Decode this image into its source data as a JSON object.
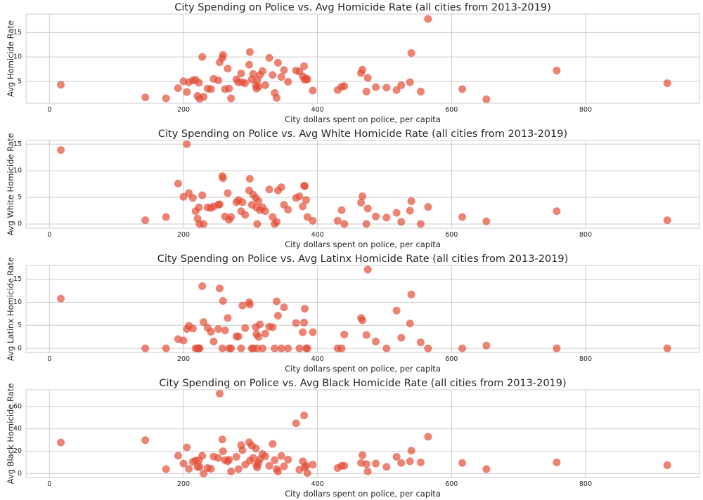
{
  "chart_data": [
    {
      "type": "scatter",
      "title": "City Spending on Police vs. Avg Homicide Rate (all cities from 2013-2019)",
      "xlabel": "City dollars spent on police, per capita",
      "ylabel": "Avg Homicide Rate",
      "xlim": [
        -35,
        970
      ],
      "ylim": [
        0.5,
        18.8
      ],
      "xticks": [
        0,
        200,
        400,
        600,
        800
      ],
      "yticks": [
        5,
        10,
        15
      ],
      "grid": true,
      "color": "#e24a33",
      "points": [
        [
          17,
          4.3
        ],
        [
          143,
          1.7
        ],
        [
          174,
          1.5
        ],
        [
          192,
          3.6
        ],
        [
          200,
          5
        ],
        [
          205,
          2.8
        ],
        [
          208,
          4.8
        ],
        [
          214,
          5.2
        ],
        [
          218,
          5.3
        ],
        [
          221,
          2
        ],
        [
          223,
          4.7
        ],
        [
          224,
          1.4
        ],
        [
          228,
          10
        ],
        [
          230,
          1.8
        ],
        [
          236,
          3.5
        ],
        [
          241,
          3.4
        ],
        [
          245,
          5.5
        ],
        [
          252,
          5.2
        ],
        [
          254,
          8.9
        ],
        [
          258,
          9.8
        ],
        [
          259,
          10.4
        ],
        [
          262,
          3.4
        ],
        [
          266,
          7.6
        ],
        [
          268,
          3.5
        ],
        [
          271,
          1.5
        ],
        [
          279,
          5.4
        ],
        [
          282,
          4.8
        ],
        [
          286,
          6.6
        ],
        [
          288,
          4.8
        ],
        [
          292,
          4.6
        ],
        [
          298,
          8.4
        ],
        [
          299,
          11
        ],
        [
          302,
          5.4
        ],
        [
          304,
          6.5
        ],
        [
          308,
          4.1
        ],
        [
          309,
          3.5
        ],
        [
          310,
          5.2
        ],
        [
          312,
          3.9
        ],
        [
          314,
          6.3
        ],
        [
          318,
          7.1
        ],
        [
          322,
          4.2
        ],
        [
          328,
          9.8
        ],
        [
          333,
          6.3
        ],
        [
          336,
          2.6
        ],
        [
          339,
          1.6
        ],
        [
          341,
          8.8
        ],
        [
          346,
          5.9
        ],
        [
          350,
          7.3
        ],
        [
          356,
          4.9
        ],
        [
          368,
          7.2
        ],
        [
          373,
          7.0
        ],
        [
          378,
          6.0
        ],
        [
          380,
          8.1
        ],
        [
          381,
          5.3
        ],
        [
          383,
          5.6
        ],
        [
          385,
          5.4
        ],
        [
          393,
          3.1
        ],
        [
          430,
          3.2
        ],
        [
          436,
          3.9
        ],
        [
          440,
          4
        ],
        [
          465,
          6.7
        ],
        [
          467,
          7.4
        ],
        [
          473,
          2.9
        ],
        [
          475,
          5.7
        ],
        [
          487,
          3.8
        ],
        [
          503,
          3.7
        ],
        [
          518,
          3.2
        ],
        [
          525,
          4.2
        ],
        [
          538,
          4.8
        ],
        [
          540,
          10.8
        ],
        [
          554,
          2.9
        ],
        [
          565,
          17.8
        ],
        [
          616,
          3.4
        ],
        [
          652,
          1.3
        ],
        [
          757,
          7.2
        ],
        [
          922,
          4.6
        ]
      ]
    },
    {
      "type": "scatter",
      "title": "City Spending on Police vs. Avg White Homicide Rate (all cities from 2013-2019)",
      "xlabel": "City dollars spent on police, per capita",
      "ylabel": "Avg White Homicide Rate",
      "xlim": [
        -35,
        970
      ],
      "ylim": [
        -0.8,
        15.7
      ],
      "xticks": [
        0,
        200,
        400,
        600,
        800
      ],
      "yticks": [
        0,
        5,
        10,
        15
      ],
      "grid": true,
      "color": "#e24a33",
      "points": [
        [
          17,
          13.9
        ],
        [
          143,
          0.7
        ],
        [
          174,
          1.3
        ],
        [
          192,
          7.6
        ],
        [
          200,
          5.1
        ],
        [
          205,
          15
        ],
        [
          208,
          5.8
        ],
        [
          214,
          4.9
        ],
        [
          218,
          2.4
        ],
        [
          221,
          1
        ],
        [
          223,
          3.1
        ],
        [
          224,
          0
        ],
        [
          228,
          5.4
        ],
        [
          230,
          0
        ],
        [
          236,
          3.1
        ],
        [
          241,
          3
        ],
        [
          245,
          3.3
        ],
        [
          252,
          3.6
        ],
        [
          254,
          3.7
        ],
        [
          258,
          9
        ],
        [
          259,
          8.6
        ],
        [
          262,
          1.4
        ],
        [
          266,
          5.8
        ],
        [
          268,
          0.8
        ],
        [
          271,
          1.3
        ],
        [
          279,
          4.1
        ],
        [
          282,
          4.5
        ],
        [
          286,
          2.4
        ],
        [
          288,
          4.1
        ],
        [
          292,
          1.7
        ],
        [
          298,
          6.3
        ],
        [
          299,
          8.5
        ],
        [
          302,
          3.6
        ],
        [
          304,
          5.5
        ],
        [
          308,
          4.9
        ],
        [
          309,
          3.1
        ],
        [
          310,
          0
        ],
        [
          312,
          4.3
        ],
        [
          314,
          2.6
        ],
        [
          318,
          3.1
        ],
        [
          322,
          2.4
        ],
        [
          328,
          6.5
        ],
        [
          333,
          1.3
        ],
        [
          336,
          0
        ],
        [
          339,
          0.4
        ],
        [
          341,
          6.3
        ],
        [
          346,
          6.9
        ],
        [
          350,
          3.6
        ],
        [
          356,
          2.7
        ],
        [
          368,
          4.9
        ],
        [
          373,
          5.2
        ],
        [
          378,
          3.3
        ],
        [
          380,
          7.2
        ],
        [
          381,
          7.1
        ],
        [
          383,
          4.5
        ],
        [
          385,
          1.3
        ],
        [
          393,
          0.6
        ],
        [
          430,
          0.6
        ],
        [
          436,
          2.6
        ],
        [
          440,
          0
        ],
        [
          465,
          4
        ],
        [
          467,
          5.2
        ],
        [
          473,
          0
        ],
        [
          475,
          2.9
        ],
        [
          487,
          1.4
        ],
        [
          503,
          1.2
        ],
        [
          518,
          2.1
        ],
        [
          525,
          0.4
        ],
        [
          538,
          2.5
        ],
        [
          540,
          4.3
        ],
        [
          554,
          0
        ],
        [
          565,
          3.2
        ],
        [
          616,
          1.3
        ],
        [
          652,
          0.5
        ],
        [
          757,
          2.4
        ],
        [
          922,
          0.7
        ]
      ]
    },
    {
      "type": "scatter",
      "title": "City Spending on Police vs. Avg Latinx Homicide Rate (all cities from 2013-2019)",
      "xlabel": "City dollars spent on police, per capita",
      "ylabel": "Avg Latinx Homicide Rate",
      "xlim": [
        -35,
        970
      ],
      "ylim": [
        -0.9,
        18.0
      ],
      "xticks": [
        0,
        200,
        400,
        600,
        800
      ],
      "yticks": [
        0,
        5,
        10,
        15
      ],
      "grid": true,
      "color": "#e24a33",
      "points": [
        [
          17,
          10.8
        ],
        [
          143,
          0
        ],
        [
          174,
          0
        ],
        [
          192,
          2
        ],
        [
          200,
          1.7
        ],
        [
          205,
          4.2
        ],
        [
          208,
          4.9
        ],
        [
          214,
          4.3
        ],
        [
          218,
          0
        ],
        [
          221,
          0
        ],
        [
          223,
          0
        ],
        [
          224,
          0
        ],
        [
          228,
          13.5
        ],
        [
          230,
          5.7
        ],
        [
          236,
          4.5
        ],
        [
          241,
          3.6
        ],
        [
          245,
          1.5
        ],
        [
          252,
          4.2
        ],
        [
          254,
          13
        ],
        [
          258,
          0
        ],
        [
          259,
          10.3
        ],
        [
          262,
          3.9
        ],
        [
          266,
          6.6
        ],
        [
          268,
          0
        ],
        [
          271,
          0
        ],
        [
          279,
          2.6
        ],
        [
          282,
          2.6
        ],
        [
          286,
          0
        ],
        [
          288,
          9.3
        ],
        [
          292,
          4.4
        ],
        [
          298,
          10
        ],
        [
          299,
          9.5
        ],
        [
          302,
          0
        ],
        [
          304,
          0
        ],
        [
          308,
          4.6
        ],
        [
          309,
          3.1
        ],
        [
          310,
          0
        ],
        [
          312,
          2.5
        ],
        [
          314,
          5.2
        ],
        [
          318,
          0
        ],
        [
          322,
          3.2
        ],
        [
          328,
          4.7
        ],
        [
          333,
          4.6
        ],
        [
          336,
          0
        ],
        [
          339,
          10.2
        ],
        [
          341,
          7.1
        ],
        [
          346,
          0
        ],
        [
          350,
          8.9
        ],
        [
          356,
          0
        ],
        [
          368,
          5.5
        ],
        [
          373,
          0
        ],
        [
          378,
          3.5
        ],
        [
          380,
          5.6
        ],
        [
          381,
          8.6
        ],
        [
          383,
          0
        ],
        [
          385,
          0
        ],
        [
          393,
          3.5
        ],
        [
          430,
          0
        ],
        [
          436,
          0
        ],
        [
          440,
          3
        ],
        [
          465,
          6.6
        ],
        [
          467,
          6.1
        ],
        [
          473,
          2.9
        ],
        [
          475,
          17.1
        ],
        [
          487,
          1.5
        ],
        [
          503,
          0
        ],
        [
          518,
          8.2
        ],
        [
          525,
          2.3
        ],
        [
          538,
          5.4
        ],
        [
          540,
          11.7
        ],
        [
          554,
          1.3
        ],
        [
          565,
          0
        ],
        [
          616,
          0
        ],
        [
          652,
          0.6
        ],
        [
          757,
          0
        ],
        [
          922,
          0
        ]
      ]
    },
    {
      "type": "scatter",
      "title": "City Spending on Police vs. Avg Black Homicide Rate (all cities from 2013-2019)",
      "xlabel": "City dollars spent on police, per capita",
      "ylabel": "Avg Black Homicide Rate",
      "xlim": [
        -35,
        970
      ],
      "ylim": [
        -3.5,
        75
      ],
      "xticks": [
        0,
        200,
        400,
        600,
        800
      ],
      "yticks": [
        0,
        20,
        40,
        60
      ],
      "grid": true,
      "color": "#e24a33",
      "points": [
        [
          17,
          27.8
        ],
        [
          143,
          29.9
        ],
        [
          174,
          4
        ],
        [
          192,
          16
        ],
        [
          200,
          9
        ],
        [
          205,
          23.5
        ],
        [
          208,
          4.3
        ],
        [
          214,
          10.5
        ],
        [
          218,
          11.8
        ],
        [
          221,
          6
        ],
        [
          223,
          11.8
        ],
        [
          224,
          6
        ],
        [
          228,
          16
        ],
        [
          230,
          0
        ],
        [
          236,
          5
        ],
        [
          241,
          4.3
        ],
        [
          245,
          15.2
        ],
        [
          252,
          14
        ],
        [
          254,
          71.5
        ],
        [
          258,
          30.5
        ],
        [
          259,
          20
        ],
        [
          262,
          12
        ],
        [
          266,
          11
        ],
        [
          268,
          12.5
        ],
        [
          271,
          2
        ],
        [
          279,
          15
        ],
        [
          282,
          4
        ],
        [
          286,
          25.5
        ],
        [
          288,
          21
        ],
        [
          292,
          8
        ],
        [
          298,
          28
        ],
        [
          299,
          11.5
        ],
        [
          302,
          25
        ],
        [
          304,
          14
        ],
        [
          308,
          22.5
        ],
        [
          309,
          7.5
        ],
        [
          310,
          5.5
        ],
        [
          312,
          9.5
        ],
        [
          314,
          13
        ],
        [
          318,
          17.5
        ],
        [
          322,
          15.5
        ],
        [
          328,
          7
        ],
        [
          333,
          26.5
        ],
        [
          336,
          12
        ],
        [
          339,
          4
        ],
        [
          341,
          2
        ],
        [
          346,
          15.8
        ],
        [
          350,
          6.5
        ],
        [
          356,
          12.5
        ],
        [
          368,
          45
        ],
        [
          373,
          3.5
        ],
        [
          378,
          11
        ],
        [
          380,
          52
        ],
        [
          381,
          5.5
        ],
        [
          383,
          7
        ],
        [
          385,
          0.5
        ],
        [
          393,
          8
        ],
        [
          430,
          5
        ],
        [
          436,
          7
        ],
        [
          440,
          7
        ],
        [
          465,
          9.5
        ],
        [
          467,
          16.5
        ],
        [
          473,
          8.5
        ],
        [
          475,
          2
        ],
        [
          487,
          9
        ],
        [
          503,
          6
        ],
        [
          518,
          15
        ],
        [
          525,
          9.5
        ],
        [
          538,
          11
        ],
        [
          540,
          20.5
        ],
        [
          554,
          10
        ],
        [
          565,
          33
        ],
        [
          616,
          9.5
        ],
        [
          652,
          4
        ],
        [
          757,
          10
        ],
        [
          922,
          7.5
        ]
      ]
    }
  ]
}
